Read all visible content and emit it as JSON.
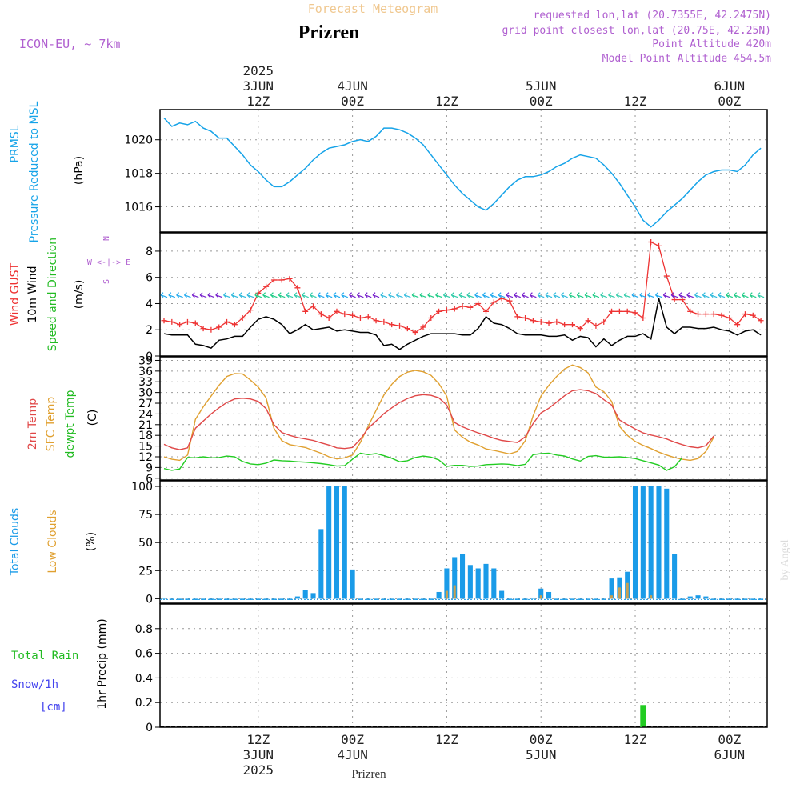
{
  "header": {
    "supertitle": "Forecast Meteogram",
    "title": "Prizren",
    "model": "ICON-EU, ~ 7km",
    "requested": "requested lon,lat (20.7355E, 42.2475N)",
    "gridpoint": "grid point closest lon,lat (20.75E, 42.25N)",
    "point_altitude": "Point Altitude 420m",
    "model_altitude": "Model Point Altitude 454.5m",
    "footer": "Prizren",
    "credit": "by Angel"
  },
  "colors": {
    "pressure": "#16a3e8",
    "gust": "#ee3333",
    "wind": "#000000",
    "temp2m": "#e04848",
    "sfc": "#e0a030",
    "dewpt": "#22cc22",
    "totalclouds": "#1a9be8",
    "lowclouds": "#c8a050",
    "rain": "#22cc22",
    "snow": "#4444ee",
    "labelpurple": "#b060d0"
  },
  "time_axis": {
    "top_labels": [
      {
        "t": 12,
        "lines": [
          "2025",
          "3JUN",
          "12Z"
        ]
      },
      {
        "t": 24,
        "lines": [
          "4JUN",
          "00Z"
        ]
      },
      {
        "t": 36,
        "lines": [
          "12Z"
        ]
      },
      {
        "t": 48,
        "lines": [
          "5JUN",
          "00Z"
        ]
      },
      {
        "t": 60,
        "lines": [
          "12Z"
        ]
      },
      {
        "t": 72,
        "lines": [
          "6JUN",
          "00Z"
        ]
      }
    ],
    "bottom_labels": [
      {
        "t": 12,
        "lines": [
          "12Z",
          "3JUN",
          "2025"
        ]
      },
      {
        "t": 24,
        "lines": [
          "00Z",
          "4JUN"
        ]
      },
      {
        "t": 36,
        "lines": [
          "12Z"
        ]
      },
      {
        "t": 48,
        "lines": [
          "00Z",
          "5JUN"
        ]
      },
      {
        "t": 60,
        "lines": [
          "12Z"
        ]
      },
      {
        "t": 72,
        "lines": [
          "00Z",
          "6JUN"
        ]
      }
    ]
  },
  "chart_data": [
    {
      "type": "line",
      "panel": "pressure",
      "title": "PRMSL Pressure Reduced to MSL",
      "ylabel": "(hPa)",
      "ylim": [
        1014.5,
        1021.8
      ],
      "yticks": [
        1016,
        1018,
        1020
      ],
      "x": [
        0,
        1,
        2,
        3,
        4,
        5,
        6,
        7,
        8,
        9,
        10,
        11,
        12,
        13,
        14,
        15,
        16,
        17,
        18,
        19,
        20,
        21,
        22,
        23,
        24,
        25,
        26,
        27,
        28,
        29,
        30,
        31,
        32,
        33,
        34,
        35,
        36,
        37,
        38,
        39,
        40,
        41,
        42,
        43,
        44,
        45,
        46,
        47,
        48,
        49,
        50,
        51,
        52,
        53,
        54,
        55,
        56,
        57,
        58,
        59,
        60,
        61,
        62,
        63,
        64,
        65,
        66,
        67,
        68,
        69,
        70,
        71,
        72,
        73,
        74,
        75,
        76
      ],
      "series": [
        {
          "name": "PRMSL",
          "values": [
            1021.3,
            1020.8,
            1021.0,
            1020.9,
            1021.1,
            1020.7,
            1020.5,
            1020.1,
            1020.1,
            1019.6,
            1019.1,
            1018.5,
            1018.1,
            1017.6,
            1017.2,
            1017.2,
            1017.5,
            1017.9,
            1018.3,
            1018.8,
            1019.2,
            1019.5,
            1019.6,
            1019.7,
            1019.9,
            1020.0,
            1019.9,
            1020.2,
            1020.7,
            1020.7,
            1020.6,
            1020.4,
            1020.1,
            1019.7,
            1019.1,
            1018.5,
            1017.9,
            1017.3,
            1016.8,
            1016.4,
            1016.0,
            1015.8,
            1016.2,
            1016.7,
            1017.2,
            1017.6,
            1017.8,
            1017.8,
            1017.9,
            1018.1,
            1018.4,
            1018.6,
            1018.9,
            1019.1,
            1019.0,
            1018.9,
            1018.5,
            1018.0,
            1017.4,
            1016.7,
            1016.0,
            1015.2,
            1014.8,
            1015.2,
            1015.7,
            1016.1,
            1016.5,
            1017.0,
            1017.5,
            1017.9,
            1018.1,
            1018.2,
            1018.2,
            1018.1,
            1018.5,
            1019.1,
            1019.5
          ]
        }
      ]
    },
    {
      "type": "line",
      "panel": "wind",
      "title": "Wind GUST / 10m Wind Speed and Direction",
      "ylabel": "(m/s)",
      "compass": [
        "N",
        "W <-|-> E",
        "S"
      ],
      "ylim": [
        0,
        9.4
      ],
      "yticks": [
        0,
        2,
        4,
        6,
        8
      ],
      "x": [
        0,
        1,
        2,
        3,
        4,
        5,
        6,
        7,
        8,
        9,
        10,
        11,
        12,
        13,
        14,
        15,
        16,
        17,
        18,
        19,
        20,
        21,
        22,
        23,
        24,
        25,
        26,
        27,
        28,
        29,
        30,
        31,
        32,
        33,
        34,
        35,
        36,
        37,
        38,
        39,
        40,
        41,
        42,
        43,
        44,
        45,
        46,
        47,
        48,
        49,
        50,
        51,
        52,
        53,
        54,
        55,
        56,
        57,
        58,
        59,
        60,
        61,
        62,
        63,
        64,
        65,
        66,
        67,
        68,
        69,
        70,
        71,
        72,
        73,
        74,
        75,
        76
      ],
      "series": [
        {
          "name": "Wind GUST",
          "values": [
            2.7,
            2.6,
            2.4,
            2.6,
            2.5,
            2.1,
            2.0,
            2.2,
            2.6,
            2.4,
            2.9,
            3.5,
            4.8,
            5.3,
            5.8,
            5.8,
            5.9,
            5.2,
            3.4,
            3.8,
            3.2,
            2.9,
            3.4,
            3.2,
            3.1,
            2.9,
            3.0,
            2.7,
            2.6,
            2.4,
            2.3,
            2.1,
            1.8,
            2.2,
            2.9,
            3.4,
            3.5,
            3.6,
            3.8,
            3.7,
            4.0,
            3.4,
            4.1,
            4.4,
            4.2,
            3.0,
            2.9,
            2.7,
            2.6,
            2.5,
            2.6,
            2.4,
            2.4,
            2.1,
            2.7,
            2.3,
            2.6,
            3.4,
            3.4,
            3.4,
            3.3,
            2.9,
            8.7,
            8.4,
            6.1,
            4.3,
            4.3,
            3.4,
            3.2,
            3.2,
            3.2,
            3.1,
            2.9,
            2.4,
            3.2,
            3.1,
            2.7
          ]
        },
        {
          "name": "10m Wind",
          "values": [
            1.7,
            1.6,
            1.6,
            1.6,
            0.9,
            0.8,
            0.6,
            1.2,
            1.3,
            1.5,
            1.5,
            2.2,
            2.8,
            3.0,
            2.8,
            2.4,
            1.7,
            2.0,
            2.4,
            2.0,
            2.1,
            2.2,
            1.9,
            2.0,
            1.9,
            1.8,
            1.8,
            1.6,
            0.8,
            0.9,
            0.5,
            0.9,
            1.2,
            1.5,
            1.7,
            1.7,
            1.7,
            1.7,
            1.6,
            1.6,
            2.1,
            3.0,
            2.5,
            2.4,
            2.1,
            1.7,
            1.6,
            1.6,
            1.6,
            1.5,
            1.5,
            1.6,
            1.2,
            1.5,
            1.4,
            0.7,
            1.3,
            0.8,
            1.2,
            1.5,
            1.5,
            1.7,
            1.3,
            4.4,
            2.2,
            1.7,
            2.2,
            2.2,
            2.1,
            2.1,
            2.2,
            2.0,
            1.9,
            1.6,
            1.9,
            2.0,
            1.6
          ]
        }
      ]
    },
    {
      "type": "line",
      "panel": "temperature",
      "title": "2m Temp / SFC Temp / dewpt Temp",
      "ylabel": "(C)",
      "ylim": [
        5.5,
        40
      ],
      "yticks": [
        6,
        9,
        12,
        15,
        18,
        21,
        24,
        27,
        30,
        33,
        36,
        39
      ],
      "x": [
        0,
        1,
        2,
        3,
        4,
        5,
        6,
        7,
        8,
        9,
        10,
        11,
        12,
        13,
        14,
        15,
        16,
        17,
        18,
        19,
        20,
        21,
        22,
        23,
        24,
        25,
        26,
        27,
        28,
        29,
        30,
        31,
        32,
        33,
        34,
        35,
        36,
        37,
        38,
        39,
        40,
        41,
        42,
        43,
        44,
        45,
        46,
        47,
        48,
        49,
        50,
        51,
        52,
        53,
        54,
        55,
        56,
        57,
        58,
        59,
        60,
        61,
        62,
        63,
        64,
        65,
        66,
        67,
        68,
        69,
        70,
        71,
        72,
        73,
        74,
        75,
        76
      ],
      "series": [
        {
          "name": "2m Temp",
          "values": [
            15.5,
            14.5,
            14.0,
            14.5,
            20.0,
            22.0,
            24.0,
            25.7,
            27.2,
            28.2,
            28.4,
            28.2,
            27.5,
            25.5,
            21.0,
            18.8,
            18.0,
            17.4,
            17.0,
            16.6,
            15.9,
            15.3,
            14.5,
            14.3,
            14.6,
            16.9,
            20.0,
            22.0,
            24.1,
            25.7,
            27.2,
            28.3,
            29.1,
            29.4,
            29.2,
            28.5,
            26.5,
            21.6,
            20.4,
            19.5,
            18.7,
            18.0,
            17.2,
            16.6,
            16.3,
            16.0,
            17.6,
            21.3,
            24.3,
            25.6,
            27.3,
            29.1,
            30.5,
            30.8,
            30.5,
            29.7,
            28.0,
            26.5,
            22.3,
            21.0,
            19.8,
            18.7,
            18.1,
            17.6,
            17.0,
            16.1,
            15.4,
            14.8,
            14.5,
            15.1,
            17.8,
            null,
            null,
            null,
            null,
            null,
            null
          ]
        },
        {
          "name": "SFC Temp",
          "values": [
            12.0,
            11.3,
            11.0,
            12.5,
            22.5,
            26.0,
            29.0,
            32.0,
            34.5,
            35.3,
            35.2,
            33.5,
            31.5,
            28.5,
            20.0,
            16.5,
            15.4,
            15.0,
            14.6,
            13.8,
            13.0,
            12.0,
            11.4,
            11.7,
            12.5,
            16.0,
            20.5,
            25.0,
            29.3,
            32.3,
            34.5,
            35.7,
            36.2,
            35.8,
            34.8,
            32.5,
            29.0,
            19.5,
            17.5,
            16.1,
            15.3,
            14.2,
            13.8,
            13.3,
            12.8,
            13.5,
            16.5,
            23.5,
            29.0,
            32.0,
            34.5,
            36.6,
            37.7,
            37.0,
            35.5,
            31.5,
            30.2,
            27.5,
            20.5,
            18.0,
            16.3,
            15.2,
            14.3,
            13.3,
            12.5,
            11.8,
            11.3,
            11.0,
            11.5,
            13.5,
            17.5,
            null,
            null,
            null,
            null,
            null,
            null
          ]
        },
        {
          "name": "dewpt Temp",
          "values": [
            8.7,
            8.2,
            8.6,
            11.8,
            11.7,
            12.0,
            11.7,
            11.8,
            12.2,
            12.0,
            10.7,
            10.0,
            9.8,
            10.2,
            11.1,
            10.9,
            10.8,
            10.6,
            10.5,
            10.3,
            10.1,
            9.8,
            9.4,
            9.5,
            11.3,
            13.0,
            12.6,
            12.9,
            12.3,
            11.6,
            10.6,
            10.9,
            11.8,
            12.2,
            11.9,
            11.1,
            9.3,
            9.6,
            9.6,
            9.3,
            9.4,
            9.8,
            9.9,
            10.0,
            9.9,
            9.5,
            9.9,
            12.6,
            12.9,
            13.0,
            12.5,
            12.2,
            11.4,
            10.8,
            12.1,
            12.3,
            11.9,
            11.9,
            12.0,
            11.8,
            11.5,
            10.9,
            10.3,
            9.7,
            8.2,
            9.2,
            11.8,
            null,
            null,
            null,
            null,
            null,
            null,
            null,
            null,
            null,
            null
          ]
        }
      ]
    },
    {
      "type": "bar",
      "panel": "clouds",
      "title": "Total Clouds / Low Clouds",
      "ylabel": "(%)",
      "ylim": [
        -4,
        105
      ],
      "yticks": [
        0,
        25,
        50,
        75,
        100
      ],
      "x": [
        0,
        1,
        2,
        3,
        4,
        5,
        6,
        7,
        8,
        9,
        10,
        11,
        12,
        13,
        14,
        15,
        16,
        17,
        18,
        19,
        20,
        21,
        22,
        23,
        24,
        25,
        26,
        27,
        28,
        29,
        30,
        31,
        32,
        33,
        34,
        35,
        36,
        37,
        38,
        39,
        40,
        41,
        42,
        43,
        44,
        45,
        46,
        47,
        48,
        49,
        50,
        51,
        52,
        53,
        54,
        55,
        56,
        57,
        58,
        59,
        60,
        61,
        62,
        63,
        64,
        65,
        66,
        67,
        68,
        69,
        70,
        71,
        72,
        73,
        74,
        75,
        76
      ],
      "series": [
        {
          "name": "Total Clouds",
          "values": [
            1,
            0,
            0,
            0,
            0,
            0,
            0,
            0,
            0,
            0,
            0,
            0,
            0,
            0,
            0,
            0,
            0,
            2,
            8,
            5,
            62,
            100,
            100,
            100,
            26,
            0,
            0,
            0,
            0,
            0,
            0,
            0,
            0,
            0,
            0,
            6,
            27,
            37,
            40,
            30,
            27,
            31,
            27,
            7,
            0,
            0,
            0,
            1,
            9,
            6,
            0,
            0,
            0,
            0,
            0,
            0,
            0,
            18,
            19,
            24,
            100,
            100,
            100,
            100,
            98,
            40,
            0,
            2,
            3,
            2,
            0,
            0,
            0,
            0,
            0,
            0,
            0
          ]
        },
        {
          "name": "Low Clouds",
          "values": [
            0,
            0,
            0,
            0,
            0,
            0,
            0,
            0,
            0,
            0,
            0,
            0,
            0,
            0,
            0,
            0,
            0,
            0,
            0,
            0,
            0,
            0,
            0,
            0,
            0,
            0,
            0,
            0,
            0,
            0,
            0,
            0,
            0,
            0,
            0,
            0,
            7,
            12,
            0,
            0,
            0,
            0,
            0,
            0,
            0,
            0,
            0,
            0,
            3,
            0,
            0,
            0,
            0,
            0,
            0,
            0,
            0,
            3,
            10,
            14,
            0,
            0,
            3,
            0,
            0,
            0,
            0,
            0,
            0,
            0,
            0,
            0,
            0,
            0,
            0,
            0,
            0
          ]
        }
      ]
    },
    {
      "type": "bar",
      "panel": "precip",
      "title": "Total Rain / Snow/1h [cm]",
      "ylabel": "1hr Precip (mm)",
      "ylim": [
        0,
        1.0
      ],
      "yticks": [
        0,
        0.2,
        0.4,
        0.6,
        0.8
      ],
      "ytick_labels": [
        "0",
        "0.2",
        "0.4",
        "0.6",
        "0.8"
      ],
      "x": [
        61
      ],
      "series": [
        {
          "name": "Total Rain",
          "values": [
            0.18
          ]
        }
      ]
    }
  ],
  "panel_labels": {
    "pressure": {
      "l1": "PRMSL",
      "l2": "Pressure Reduced to MSL",
      "unit": "(hPa)"
    },
    "wind": {
      "l1": "Wind GUST",
      "l2": "10m Wind",
      "l3": "Speed and Direction",
      "unit": "(m/s)",
      "compass_n": "N",
      "compass_we": "W <-|-> E",
      "compass_s": "S"
    },
    "temp": {
      "l1": "2m Temp",
      "l2": "SFC Temp",
      "l3": "dewpt Temp",
      "unit": "(C)"
    },
    "clouds": {
      "l1": "Total Clouds",
      "l2": "Low Clouds",
      "unit": "(%)"
    },
    "precip": {
      "l1": "Total  Rain",
      "l2": "Snow/1h",
      "l3": "[cm]",
      "unit": "1hr Precip (mm)"
    }
  }
}
